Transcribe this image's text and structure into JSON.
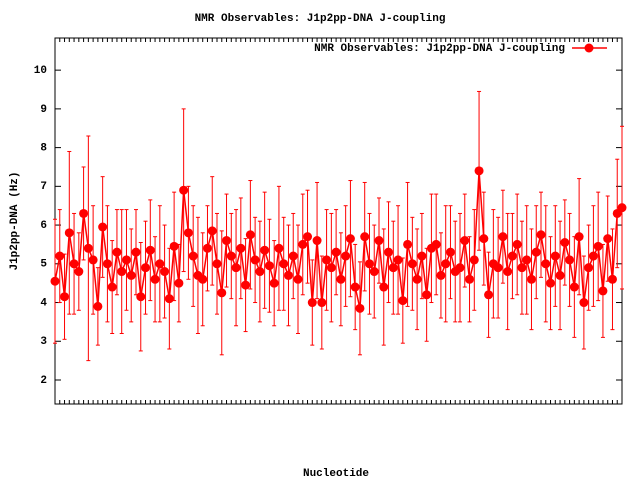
{
  "chart_data": {
    "type": "errorbar",
    "title": "NMR Observables: J1p2pp-DNA J-coupling",
    "y_label": "J1p2pp-DNA (Hz)",
    "x_label": "Nucleotide",
    "ylim": [
      1.38,
      10.83
    ],
    "yticks": [
      2,
      3,
      4,
      5,
      6,
      7,
      8,
      9,
      10
    ],
    "legend": "top-right",
    "series": [
      {
        "name": "NMR Observables: J1p2pp-DNA J-coupling",
        "color": "#ff0000",
        "values": [
          4.55,
          5.2,
          4.15,
          5.8,
          5.0,
          4.8,
          6.3,
          5.4,
          5.1,
          3.9,
          5.95,
          5.0,
          4.4,
          5.3,
          4.8,
          5.1,
          4.7,
          5.3,
          4.15,
          4.9,
          5.35,
          4.6,
          5.0,
          4.8,
          4.1,
          5.45,
          4.5,
          6.9,
          5.8,
          5.2,
          4.7,
          4.6,
          5.4,
          5.85,
          5.0,
          4.25,
          5.6,
          5.2,
          4.9,
          5.4,
          4.45,
          5.75,
          5.1,
          4.8,
          5.35,
          4.95,
          4.5,
          5.4,
          5.0,
          4.7,
          5.2,
          4.6,
          5.5,
          5.7,
          4.0,
          5.6,
          4.0,
          5.1,
          4.9,
          5.3,
          4.6,
          5.2,
          5.65,
          4.4,
          3.85,
          5.7,
          5.0,
          4.8,
          5.6,
          4.4,
          5.3,
          4.9,
          5.1,
          4.05,
          5.5,
          5.0,
          4.6,
          5.2,
          4.2,
          5.4,
          5.5,
          4.7,
          5.0,
          5.3,
          4.8,
          4.9,
          5.6,
          4.6,
          5.1,
          7.4,
          5.65,
          4.2,
          5.0,
          4.9,
          5.7,
          4.8,
          5.2,
          5.5,
          4.9,
          5.1,
          4.6,
          5.3,
          5.75,
          5.0,
          4.5,
          5.2,
          4.7,
          5.55,
          5.1,
          4.4,
          5.7,
          4.0,
          4.9,
          5.2,
          5.45,
          4.3,
          5.65,
          4.6,
          6.3,
          6.45
        ],
        "errors": [
          1.6,
          1.2,
          1.1,
          2.1,
          1.3,
          1.0,
          1.2,
          2.9,
          1.4,
          1.0,
          1.3,
          1.5,
          1.2,
          1.1,
          1.6,
          1.3,
          1.2,
          1.1,
          1.4,
          1.2,
          1.3,
          1.1,
          1.5,
          1.2,
          1.3,
          1.4,
          1.0,
          2.1,
          1.2,
          1.3,
          1.5,
          1.2,
          1.1,
          1.4,
          1.3,
          1.6,
          1.2,
          1.1,
          1.5,
          1.3,
          1.2,
          1.4,
          1.1,
          1.3,
          1.5,
          1.2,
          1.1,
          1.6,
          1.2,
          1.3,
          1.1,
          1.4,
          1.3,
          1.2,
          1.1,
          1.5,
          1.2,
          1.3,
          1.4,
          1.1,
          1.2,
          1.3,
          1.5,
          1.1,
          1.2,
          1.4,
          1.3,
          1.2,
          1.1,
          1.5,
          1.3,
          1.2,
          1.4,
          1.1,
          1.6,
          1.2,
          1.3,
          1.1,
          1.2,
          1.4,
          1.3,
          1.1,
          1.5,
          1.2,
          1.3,
          1.4,
          1.2,
          1.1,
          1.3,
          2.05,
          1.2,
          1.1,
          1.4,
          1.3,
          1.2,
          1.5,
          1.1,
          1.3,
          1.2,
          1.4,
          1.3,
          1.2,
          1.1,
          1.5,
          1.2,
          1.3,
          1.4,
          1.1,
          1.2,
          1.3,
          1.5,
          1.2,
          1.1,
          1.3,
          1.4,
          1.2,
          1.1,
          1.3,
          1.4,
          2.1
        ]
      }
    ]
  }
}
